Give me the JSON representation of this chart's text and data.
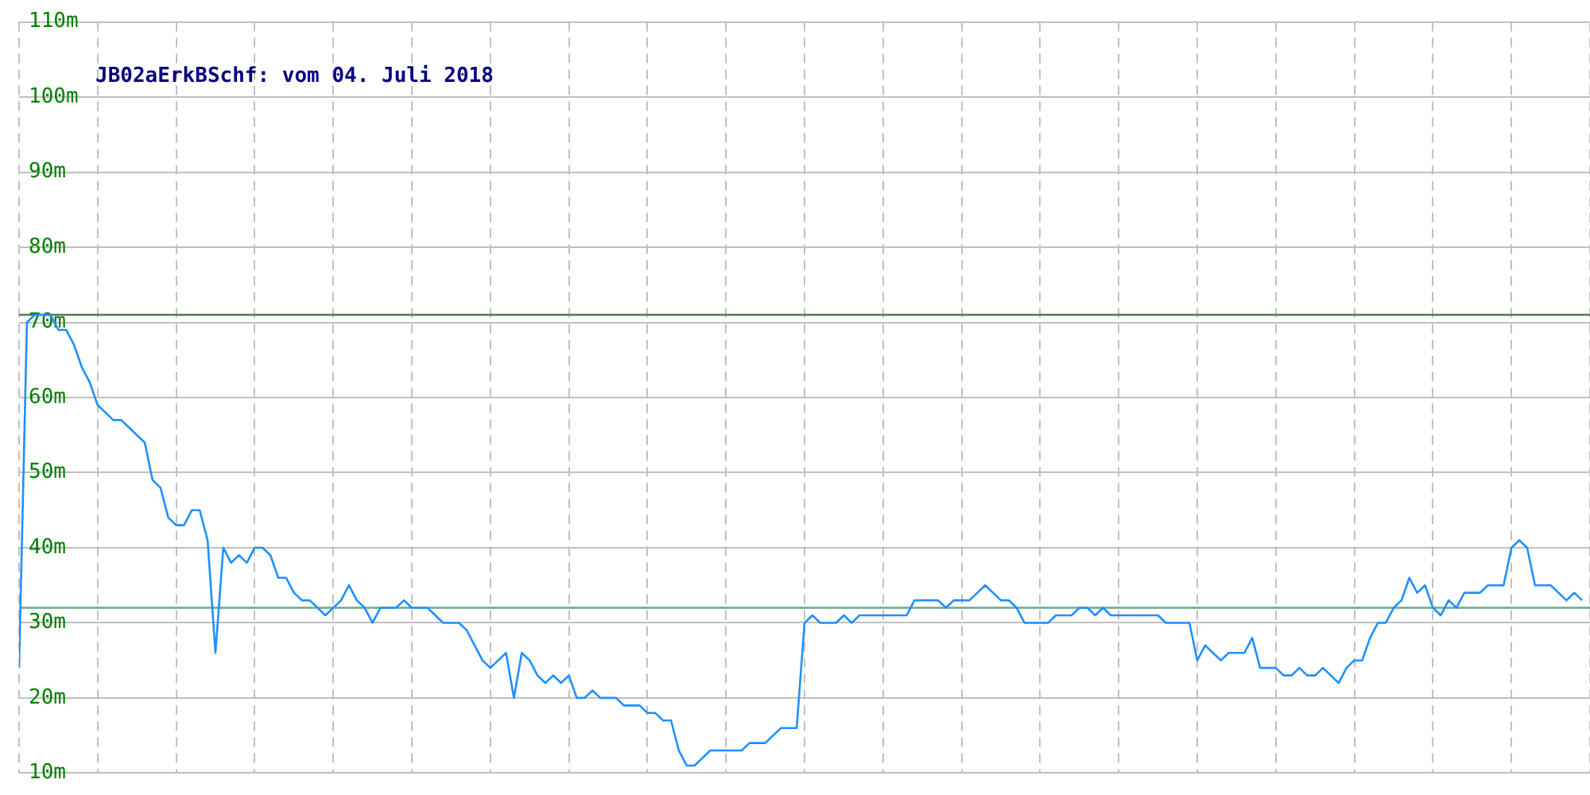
{
  "chart_data": {
    "type": "line",
    "title": "JB02aErkBSchf: vom 04. Juli 2018",
    "categories": [
      null,
      null,
      null,
      null,
      null,
      null,
      null,
      null,
      null,
      null,
      null,
      null,
      null,
      null,
      null,
      null,
      null,
      null,
      null,
      null,
      null,
      null,
      null,
      null,
      null,
      null,
      null,
      null,
      null,
      null,
      null,
      null,
      null,
      null,
      null,
      null,
      null,
      null,
      null,
      null,
      null,
      null,
      null,
      null,
      null,
      null,
      null,
      null,
      null,
      null,
      null,
      null,
      null,
      null,
      null,
      null,
      null,
      null,
      null,
      null,
      null,
      null,
      null,
      null,
      null,
      null,
      null,
      null,
      null,
      null,
      null,
      null,
      null,
      null,
      null,
      null,
      null,
      null,
      null,
      null,
      null,
      null,
      null,
      null,
      null,
      null,
      null,
      null,
      null,
      null,
      null,
      null,
      null,
      null,
      null,
      null,
      null,
      null,
      null,
      null,
      null,
      null,
      null,
      null,
      null,
      null,
      null,
      null,
      null,
      null,
      null,
      null,
      null,
      null,
      null,
      null,
      null,
      null,
      null,
      null,
      null,
      null,
      null,
      null,
      null,
      null,
      null,
      null,
      null,
      null,
      null,
      null,
      null,
      null,
      null,
      null,
      null,
      null,
      null,
      null,
      null,
      null,
      null,
      null,
      null,
      null,
      null,
      null,
      null,
      null,
      null,
      null,
      null,
      null,
      null,
      null,
      null,
      null,
      null,
      null,
      null,
      null,
      null,
      null,
      null,
      null,
      null,
      null,
      null,
      null,
      null,
      null,
      null,
      null,
      null,
      null,
      null,
      null,
      null,
      null,
      null,
      null,
      null,
      null,
      null,
      null,
      null,
      null,
      null,
      null,
      null,
      null,
      null,
      null,
      null,
      null,
      null,
      null,
      null,
      null
    ],
    "series": [
      {
        "color": "#1e90ff",
        "values": [
          24,
          70,
          71,
          71,
          71,
          69,
          69,
          67,
          64,
          62,
          59,
          58,
          57,
          57,
          56,
          55,
          54,
          49,
          48,
          44,
          43,
          43,
          45,
          45,
          41,
          26,
          40,
          38,
          39,
          38,
          40,
          40,
          39,
          36,
          36,
          34,
          33,
          33,
          32,
          31,
          32,
          33,
          35,
          33,
          32,
          30,
          32,
          32,
          32,
          33,
          32,
          32,
          32,
          31,
          30,
          30,
          30,
          29,
          27,
          25,
          24,
          25,
          26,
          20,
          26,
          25,
          23,
          22,
          23,
          22,
          23,
          20,
          20,
          21,
          20,
          20,
          20,
          19,
          19,
          19,
          18,
          18,
          17,
          17,
          13,
          11,
          11,
          12,
          13,
          13,
          13,
          13,
          13,
          14,
          14,
          14,
          15,
          16,
          16,
          16,
          30,
          31,
          30,
          30,
          30,
          31,
          30,
          31,
          31,
          31,
          31,
          31,
          31,
          31,
          33,
          33,
          33,
          33,
          32,
          33,
          33,
          33,
          34,
          35,
          34,
          33,
          33,
          32,
          30,
          30,
          30,
          30,
          31,
          31,
          31,
          32,
          32,
          31,
          32,
          31,
          31,
          31,
          31,
          31,
          31,
          31,
          30,
          30,
          30,
          30,
          25,
          27,
          26,
          25,
          26,
          26,
          26,
          28,
          24,
          24,
          24,
          23,
          23,
          24,
          23,
          23,
          24,
          23,
          22,
          24,
          25,
          25,
          28,
          30,
          30,
          32,
          33,
          36,
          34,
          35,
          32,
          31,
          33,
          32,
          34,
          34,
          34,
          35,
          35,
          35,
          40,
          41,
          40,
          35,
          35,
          35,
          34,
          33,
          34,
          33
        ]
      }
    ],
    "ylim": [
      10,
      110
    ],
    "yticks": [
      {
        "value": 10,
        "label": "10m"
      },
      {
        "value": 20,
        "label": "20m"
      },
      {
        "value": 30,
        "label": "30m"
      },
      {
        "value": 40,
        "label": "40m"
      },
      {
        "value": 50,
        "label": "50m"
      },
      {
        "value": 60,
        "label": "60m"
      },
      {
        "value": 70,
        "label": "70m"
      },
      {
        "value": 80,
        "label": "80m"
      },
      {
        "value": 90,
        "label": "90m"
      },
      {
        "value": 100,
        "label": "100m"
      },
      {
        "value": 110,
        "label": "110m"
      }
    ],
    "ref_lines": [
      {
        "axis": "y",
        "value": 71,
        "color": "#557755"
      },
      {
        "axis": "y",
        "value": 32,
        "color": "#66aa88"
      }
    ],
    "grid": true,
    "legend": false,
    "tick_labels": "y",
    "marker": "none",
    "line_style": "solid"
  }
}
